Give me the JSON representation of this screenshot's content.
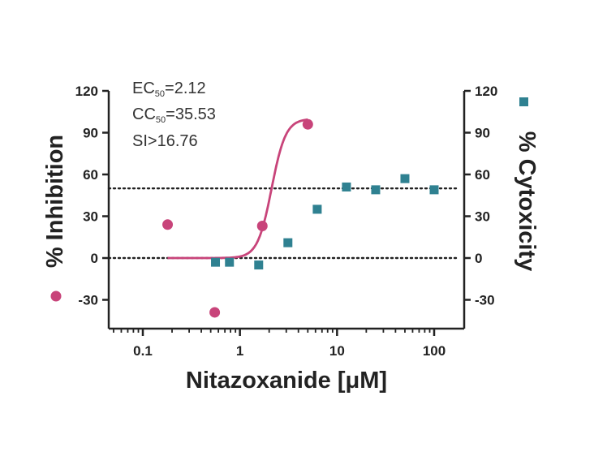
{
  "chart_data": {
    "type": "scatter",
    "xlabel": "Nitazoxanide [μM]",
    "ylabel_left": "% Inhibition",
    "ylabel_right": "% Cytoxicity",
    "x_scale": "log",
    "xlim": [
      0.05,
      200
    ],
    "ylim": [
      -50,
      120
    ],
    "x_ticks": [
      {
        "value": 0.1,
        "label": "0.1"
      },
      {
        "value": 1,
        "label": "1"
      },
      {
        "value": 10,
        "label": "10"
      },
      {
        "value": 100,
        "label": "100"
      }
    ],
    "y_ticks": [
      {
        "value": 120,
        "label": "120"
      },
      {
        "value": 90,
        "label": "90"
      },
      {
        "value": 60,
        "label": "60"
      },
      {
        "value": 30,
        "label": "30"
      },
      {
        "value": 0,
        "label": "0"
      },
      {
        "value": -30,
        "label": "-30"
      }
    ],
    "reference_lines": [
      50,
      0
    ],
    "annotations": [
      {
        "main": "EC",
        "sub": "50",
        "rest": "=2.12"
      },
      {
        "main": "CC",
        "sub": "50",
        "rest": "=35.53"
      },
      {
        "main": "SI>16.76",
        "sub": "",
        "rest": ""
      }
    ],
    "series": [
      {
        "marker": "circle",
        "color": "#c8447a",
        "axis": "left",
        "points": [
          {
            "x": 0.18,
            "y": 24
          },
          {
            "x": 0.55,
            "y": -39
          },
          {
            "x": 1.7,
            "y": 23
          },
          {
            "x": 5.0,
            "y": 96
          }
        ],
        "fit": {
          "bottom": 0,
          "top": 100,
          "ec50": 2.12,
          "hill": 6,
          "x_from": 0.18,
          "x_to": 5.0,
          "color": "#c8447a"
        }
      },
      {
        "marker": "square",
        "color": "#2f8191",
        "axis": "right",
        "points": [
          {
            "x": 0.56,
            "y": -3
          },
          {
            "x": 0.78,
            "y": -3
          },
          {
            "x": 1.56,
            "y": -5
          },
          {
            "x": 3.12,
            "y": 11
          },
          {
            "x": 6.25,
            "y": 35
          },
          {
            "x": 12.5,
            "y": 51
          },
          {
            "x": 25,
            "y": 49
          },
          {
            "x": 50,
            "y": 57
          },
          {
            "x": 100,
            "y": 49
          }
        ]
      }
    ]
  }
}
